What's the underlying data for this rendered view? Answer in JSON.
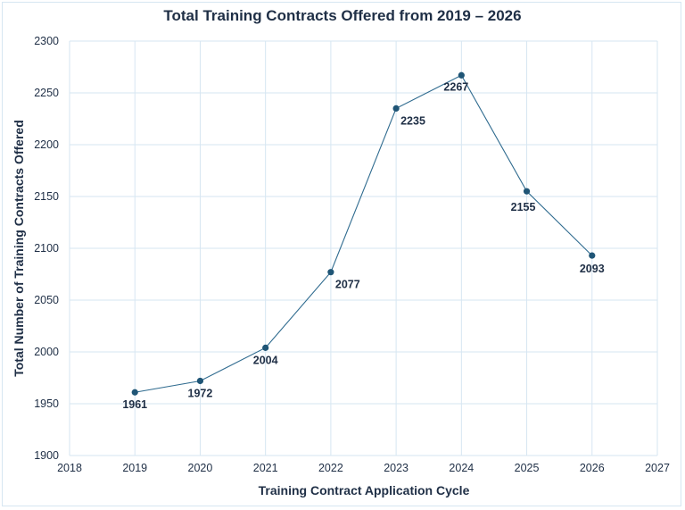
{
  "chart_data": {
    "type": "line",
    "title": "Total Training Contracts Offered from 2019 – 2026",
    "xlabel": "Training Contract Application Cycle",
    "ylabel": "Total Number of Training Contracts Offered",
    "x": [
      2019,
      2020,
      2021,
      2022,
      2023,
      2024,
      2025,
      2026
    ],
    "values": [
      1961,
      1972,
      2004,
      2077,
      2235,
      2267,
      2155,
      2093
    ],
    "xlim": [
      2018,
      2027
    ],
    "ylim": [
      1900,
      2300
    ],
    "xticks": [
      "2018",
      "2019",
      "2020",
      "2021",
      "2022",
      "2023",
      "2024",
      "2025",
      "2026",
      "2027"
    ],
    "yticks": [
      "1900",
      "1950",
      "2000",
      "2050",
      "2100",
      "2150",
      "2200",
      "2250",
      "2300"
    ],
    "grid": true,
    "legend": "none",
    "line_color": "#2f6b8f",
    "marker_color": "#1f5576",
    "grid_color": "#d6e6f2"
  }
}
